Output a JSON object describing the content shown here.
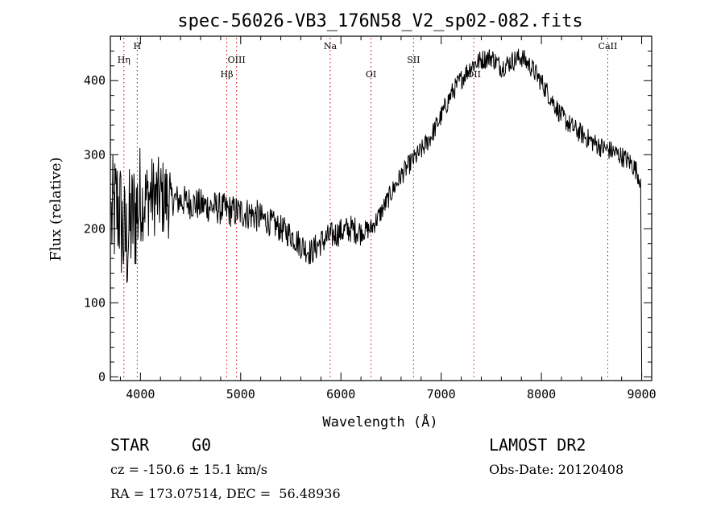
{
  "chart_data": {
    "type": "line",
    "title": "spec-56026-VB3_176N58_V2_sp02-082.fits",
    "xlabel": "Wavelength (Å)",
    "ylabel": "Flux (relative)",
    "xlim": [
      3700,
      9100
    ],
    "ylim": [
      -5,
      460
    ],
    "xticks": [
      4000,
      5000,
      6000,
      7000,
      8000,
      9000
    ],
    "yticks": [
      0,
      100,
      200,
      300,
      400
    ],
    "grid": false,
    "line_color": "#000000",
    "marker_color": "#cc0000",
    "lines": [
      {
        "label": "Hη",
        "x": 3835,
        "row": 2
      },
      {
        "label": "H",
        "x": 3968,
        "row": 1
      },
      {
        "label": "Hβ",
        "x": 4861,
        "row": 3
      },
      {
        "label": "OIII",
        "x": 4959,
        "row": 2
      },
      {
        "label": "Na",
        "x": 5893,
        "row": 1
      },
      {
        "label": "OI",
        "x": 6300,
        "row": 3
      },
      {
        "label": "SII",
        "x": 6724,
        "row": 2
      },
      {
        "label": "OII",
        "x": 7325,
        "row": 3
      },
      {
        "label": "CaII",
        "x": 8662,
        "row": 1
      }
    ],
    "series": [
      {
        "x": [
          3710,
          3750,
          3780,
          3800,
          3830,
          3860,
          3880,
          3900,
          3950,
          4000,
          4050,
          4100,
          4200,
          4300,
          4400,
          4500,
          4600,
          4700,
          4800,
          4900,
          5000,
          5100,
          5200,
          5300,
          5400,
          5500,
          5600,
          5700,
          5800,
          5900,
          6000,
          6100,
          6200,
          6300,
          6400,
          6500,
          6600,
          6700,
          6800,
          6900,
          7000,
          7100,
          7200,
          7300,
          7400,
          7500,
          7600,
          7700,
          7800,
          7900,
          8000,
          8100,
          8200,
          8300,
          8400,
          8500,
          8600,
          8700,
          8800,
          8900,
          8950,
          8990
        ],
        "y": [
          210,
          225,
          230,
          215,
          190,
          180,
          195,
          205,
          220,
          235,
          240,
          245,
          242,
          240,
          238,
          235,
          232,
          230,
          227,
          224,
          222,
          220,
          215,
          208,
          200,
          192,
          178,
          168,
          182,
          190,
          196,
          200,
          196,
          200,
          222,
          248,
          272,
          290,
          305,
          325,
          352,
          382,
          402,
          420,
          428,
          432,
          418,
          426,
          432,
          418,
          398,
          375,
          352,
          338,
          328,
          318,
          310,
          305,
          298,
          288,
          278,
          265
        ]
      }
    ]
  },
  "footer": {
    "object_type": "STAR",
    "subclass": "G0",
    "redshift": "cz = -150.6 ± 15.1 km/s",
    "coords": "RA = 173.07514, DEC =  56.48936",
    "survey": "LAMOST DR2",
    "obs_date": "Obs-Date: 20120408"
  }
}
